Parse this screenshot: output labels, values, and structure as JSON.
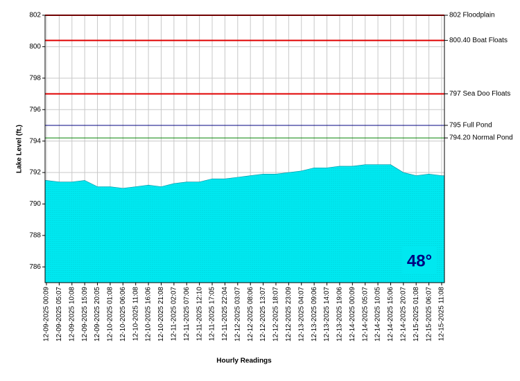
{
  "chart_data": {
    "type": "area",
    "y_label": "Lake Level (ft.)",
    "x_label": "Hourly Readings",
    "annotation": "48°",
    "categories": [
      "12-09-2025 00:09",
      "12-09-2025 05:07",
      "12-09-2025 10:08",
      "12-09-2025 15:09",
      "12-09-2025 20:05",
      "12-10-2025 01:08",
      "12-10-2025 06:06",
      "12-10-2025 11:08",
      "12-10-2025 16:06",
      "12-10-2025 21:08",
      "12-11-2025 02:07",
      "12-11-2025 07:06",
      "12-11-2025 12:10",
      "12-11-2025 17:05",
      "12-11-2025 22:04",
      "12-12-2025 03:07",
      "12-12-2025 08:06",
      "12-12-2025 13:07",
      "12-12-2025 18:07",
      "12-12-2025 23:09",
      "12-13-2025 04:07",
      "12-13-2025 09:06",
      "12-13-2025 14:07",
      "12-13-2025 19:06",
      "12-14-2025 00:09",
      "12-14-2025 05:07",
      "12-14-2025 10:05",
      "12-14-2025 15:06",
      "12-14-2025 20:07",
      "12-15-2025 01:08",
      "12-15-2025 06:07",
      "12-15-2025 11:08"
    ],
    "values": [
      791.5,
      791.4,
      791.4,
      791.5,
      791.1,
      791.1,
      791.0,
      791.1,
      791.2,
      791.1,
      791.3,
      791.4,
      791.4,
      791.6,
      791.6,
      791.7,
      791.8,
      791.9,
      791.9,
      792.0,
      792.1,
      792.3,
      792.3,
      792.4,
      792.4,
      792.5,
      792.5,
      792.5,
      792.0,
      791.8,
      791.9,
      791.8
    ],
    "color": "#00e8f0",
    "ylim": [
      785,
      802
    ],
    "yticks": [
      786,
      788,
      790,
      792,
      794,
      796,
      798,
      800,
      802
    ],
    "grid": true,
    "reference_lines": [
      {
        "value": 802,
        "label": "802 Floodplain",
        "color": "#e00000"
      },
      {
        "value": 800.4,
        "label": "800.40 Boat Floats",
        "color": "#e00000"
      },
      {
        "value": 797,
        "label": "797 Sea Doo Floats",
        "color": "#e00000"
      },
      {
        "value": 795,
        "label": "795 Full Pond",
        "color": "#000080"
      },
      {
        "value": 794.2,
        "label": "794.20 Normal Pond",
        "color": "#008000"
      }
    ]
  }
}
